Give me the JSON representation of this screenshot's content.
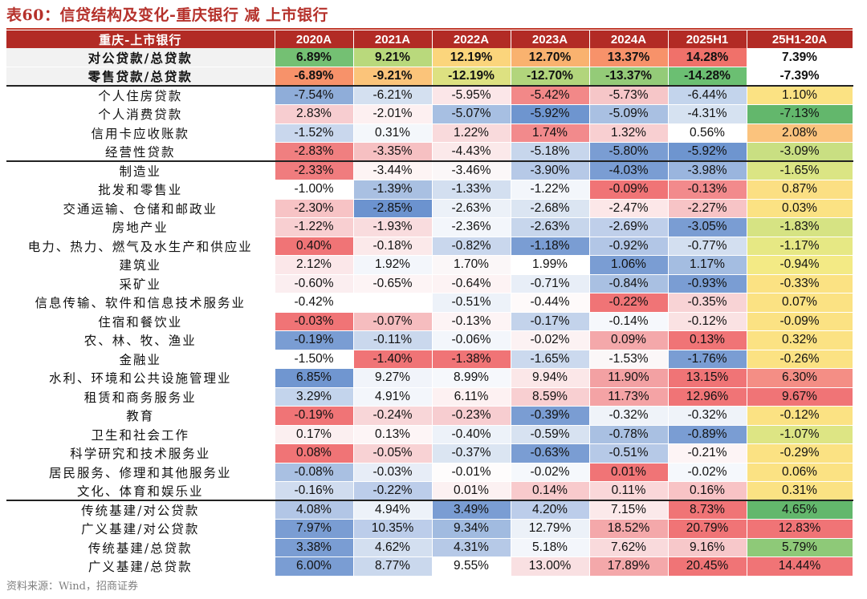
{
  "title": "表60：信贷结构及变化-重庆银行 减 上市银行",
  "source": "资料来源：Wind，招商证券",
  "headers": [
    "重庆-上市银行",
    "2020A",
    "2021A",
    "2022A",
    "2023A",
    "2024A",
    "2025H1",
    "25H1-20A"
  ],
  "rows": [
    {
      "label": "对公贷款/总贷款",
      "kind": "sum",
      "cells": [
        {
          "v": "6.89%",
          "c": "#74c073"
        },
        {
          "v": "9.21%",
          "c": "#b9d97c"
        },
        {
          "v": "12.19%",
          "c": "#fbd57c"
        },
        {
          "v": "12.70%",
          "c": "#f9b26f"
        },
        {
          "v": "13.37%",
          "c": "#f7926a"
        },
        {
          "v": "14.28%",
          "c": "#f0716a"
        },
        {
          "v": "7.39%",
          "c": "#ffffff"
        }
      ]
    },
    {
      "label": "零售贷款/总贷款",
      "kind": "sum",
      "cells": [
        {
          "v": "-6.89%",
          "c": "#f7926a"
        },
        {
          "v": "-9.21%",
          "c": "#fbc47a"
        },
        {
          "v": "-12.19%",
          "c": "#dde181"
        },
        {
          "v": "-12.70%",
          "c": "#b2d57c"
        },
        {
          "v": "-13.37%",
          "c": "#94cb78"
        },
        {
          "v": "-14.28%",
          "c": "#6bbf72"
        },
        {
          "v": "-7.39%",
          "c": "#ffffff"
        }
      ]
    },
    {
      "label": "个人住房贷款",
      "kind": "sep",
      "cells": [
        {
          "v": "-7.54%",
          "c": "#8fadd9"
        },
        {
          "v": "-6.21%",
          "c": "#d4e0f0"
        },
        {
          "v": "-5.95%",
          "c": "#fbe6e8"
        },
        {
          "v": "-5.42%",
          "c": "#f28888"
        },
        {
          "v": "-5.73%",
          "c": "#f6c6c8"
        },
        {
          "v": "-6.44%",
          "c": "#c3d4ec"
        },
        {
          "v": "1.10%",
          "c": "#fbe283"
        }
      ]
    },
    {
      "label": "个人消费贷款",
      "cells": [
        {
          "v": "2.83%",
          "c": "#f7cdd0"
        },
        {
          "v": "-2.01%",
          "c": "#fdf0f1"
        },
        {
          "v": "-5.07%",
          "c": "#a7bfe2"
        },
        {
          "v": "-5.92%",
          "c": "#6e95cf"
        },
        {
          "v": "-5.09%",
          "c": "#a9c0e2"
        },
        {
          "v": "-4.31%",
          "c": "#d6e2f1"
        },
        {
          "v": "-7.13%",
          "c": "#63b76c"
        }
      ]
    },
    {
      "label": "信用卡应收账款",
      "cells": [
        {
          "v": "-1.52%",
          "c": "#c9d7ed"
        },
        {
          "v": "0.31%",
          "c": "#f4f7fb"
        },
        {
          "v": "1.22%",
          "c": "#f9dadc"
        },
        {
          "v": "1.74%",
          "c": "#f28a8c"
        },
        {
          "v": "1.32%",
          "c": "#f8cfd1"
        },
        {
          "v": "0.56%",
          "c": "#ffffff"
        },
        {
          "v": "2.08%",
          "c": "#fbc37d"
        }
      ]
    },
    {
      "label": "经营性贷款",
      "cells": [
        {
          "v": "-2.83%",
          "c": "#f07f80"
        },
        {
          "v": "-3.35%",
          "c": "#f6c0c2"
        },
        {
          "v": "-4.43%",
          "c": "#fbe9ea"
        },
        {
          "v": "-5.18%",
          "c": "#c7d6ec"
        },
        {
          "v": "-5.80%",
          "c": "#7a9dd3"
        },
        {
          "v": "-5.92%",
          "c": "#6e95cf"
        },
        {
          "v": "-3.09%",
          "c": "#c9df82"
        }
      ]
    },
    {
      "label": "制造业",
      "kind": "sep",
      "cells": [
        {
          "v": "-2.33%",
          "c": "#f07c7e"
        },
        {
          "v": "-3.44%",
          "c": "#fdf4f4"
        },
        {
          "v": "-3.46%",
          "c": "#fbf7f8"
        },
        {
          "v": "-3.90%",
          "c": "#b6c9e7"
        },
        {
          "v": "-4.03%",
          "c": "#7a9dd3"
        },
        {
          "v": "-3.98%",
          "c": "#9ab5de"
        },
        {
          "v": "-1.65%",
          "c": "#dbe584"
        }
      ]
    },
    {
      "label": "批发和零售业",
      "cells": [
        {
          "v": "-1.00%",
          "c": "#ffffff"
        },
        {
          "v": "-1.39%",
          "c": "#a9c0e2"
        },
        {
          "v": "-1.33%",
          "c": "#d3dff0"
        },
        {
          "v": "-1.22%",
          "c": "#f3f6fb"
        },
        {
          "v": "-0.09%",
          "c": "#f07476"
        },
        {
          "v": "-0.13%",
          "c": "#f28a8c"
        },
        {
          "v": "0.87%",
          "c": "#fbdf83"
        }
      ]
    },
    {
      "label": "交通运输、仓储和邮政业",
      "cells": [
        {
          "v": "-2.30%",
          "c": "#f7c3c5"
        },
        {
          "v": "-2.85%",
          "c": "#6c93cf"
        },
        {
          "v": "-2.63%",
          "c": "#ecf1f8"
        },
        {
          "v": "-2.68%",
          "c": "#dbe5f2"
        },
        {
          "v": "-2.47%",
          "c": "#fce7e8"
        },
        {
          "v": "-2.27%",
          "c": "#f7c4c6"
        },
        {
          "v": "0.03%",
          "c": "#fbe283"
        }
      ]
    },
    {
      "label": "房地产业",
      "cells": [
        {
          "v": "-1.22%",
          "c": "#f8cfd1"
        },
        {
          "v": "-1.93%",
          "c": "#f9dcde"
        },
        {
          "v": "-2.36%",
          "c": "#f3f6fb"
        },
        {
          "v": "-2.63%",
          "c": "#c7d6ec"
        },
        {
          "v": "-2.69%",
          "c": "#bfcfea"
        },
        {
          "v": "-3.05%",
          "c": "#7a9dd3"
        },
        {
          "v": "-1.83%",
          "c": "#d6e383"
        }
      ]
    },
    {
      "label": "电力、热力、燃气及水生产和供应业",
      "cells": [
        {
          "v": "0.40%",
          "c": "#f07476"
        },
        {
          "v": "-0.18%",
          "c": "#fbe9ea"
        },
        {
          "v": "-0.82%",
          "c": "#c9d7ed"
        },
        {
          "v": "-1.18%",
          "c": "#7a9dd3"
        },
        {
          "v": "-0.92%",
          "c": "#b2c6e6"
        },
        {
          "v": "-0.77%",
          "c": "#d3dff0"
        },
        {
          "v": "-1.17%",
          "c": "#e6e884"
        }
      ]
    },
    {
      "label": "建筑业",
      "cells": [
        {
          "v": "2.12%",
          "c": "#fbe7e9"
        },
        {
          "v": "1.92%",
          "c": "#f3f6fb"
        },
        {
          "v": "1.70%",
          "c": "#fbf7f8"
        },
        {
          "v": "1.99%",
          "c": "#ffffff"
        },
        {
          "v": "1.06%",
          "c": "#7a9dd3"
        },
        {
          "v": "1.17%",
          "c": "#a4bde1"
        },
        {
          "v": "-0.94%",
          "c": "#f3ea85"
        }
      ]
    },
    {
      "label": "采矿业",
      "cells": [
        {
          "v": "-0.60%",
          "c": "#fbeef0"
        },
        {
          "v": "-0.65%",
          "c": "#fdf4f5"
        },
        {
          "v": "-0.64%",
          "c": "#fdf3f4"
        },
        {
          "v": "-0.71%",
          "c": "#e8eef7"
        },
        {
          "v": "-0.84%",
          "c": "#a9c0e2"
        },
        {
          "v": "-0.93%",
          "c": "#7a9dd3"
        },
        {
          "v": "-0.33%",
          "c": "#fbe283"
        }
      ]
    },
    {
      "label": "信息传输、软件和信息技术服务业",
      "cells": [
        {
          "v": "-0.42%",
          "c": "#ffffff"
        },
        {
          "v": "",
          "c": "#ffffff"
        },
        {
          "v": "-0.51%",
          "c": "#edf2f9"
        },
        {
          "v": "-0.44%",
          "c": "#fefafa"
        },
        {
          "v": "-0.22%",
          "c": "#f07476"
        },
        {
          "v": "-0.35%",
          "c": "#f8d3d5"
        },
        {
          "v": "0.07%",
          "c": "#fbe283"
        }
      ]
    },
    {
      "label": "住宿和餐饮业",
      "cells": [
        {
          "v": "-0.03%",
          "c": "#f07476"
        },
        {
          "v": "-0.07%",
          "c": "#f6bdbf"
        },
        {
          "v": "-0.13%",
          "c": "#fdf4f5"
        },
        {
          "v": "-0.17%",
          "c": "#c3d3eb"
        },
        {
          "v": "-0.14%",
          "c": "#f6f8fc"
        },
        {
          "v": "-0.12%",
          "c": "#fae2e3"
        },
        {
          "v": "-0.09%",
          "c": "#fbe283"
        }
      ]
    },
    {
      "label": "农、林、牧、渔业",
      "cells": [
        {
          "v": "-0.19%",
          "c": "#7a9dd3"
        },
        {
          "v": "-0.11%",
          "c": "#cad8ed"
        },
        {
          "v": "-0.06%",
          "c": "#f3f6fb"
        },
        {
          "v": "-0.02%",
          "c": "#fcf2f3"
        },
        {
          "v": "0.09%",
          "c": "#f4a8aa"
        },
        {
          "v": "0.13%",
          "c": "#f07476"
        },
        {
          "v": "0.32%",
          "c": "#fbe283"
        }
      ]
    },
    {
      "label": "金融业",
      "cells": [
        {
          "v": "-1.50%",
          "c": "#ffffff"
        },
        {
          "v": "-1.40%",
          "c": "#f07476"
        },
        {
          "v": "-1.38%",
          "c": "#f07476"
        },
        {
          "v": "-1.65%",
          "c": "#cbd9ee"
        },
        {
          "v": "-1.53%",
          "c": "#fbf7f8"
        },
        {
          "v": "-1.76%",
          "c": "#7a9dd3"
        },
        {
          "v": "-0.26%",
          "c": "#fbe283"
        }
      ]
    },
    {
      "label": "水利、环境和公共设施管理业",
      "cells": [
        {
          "v": "6.85%",
          "c": "#7096d0"
        },
        {
          "v": "9.27%",
          "c": "#f1f4fa"
        },
        {
          "v": "8.99%",
          "c": "#f6f8fc"
        },
        {
          "v": "9.94%",
          "c": "#fbe7e8"
        },
        {
          "v": "11.90%",
          "c": "#f3a1a3"
        },
        {
          "v": "13.15%",
          "c": "#f07476"
        },
        {
          "v": "6.30%",
          "c": "#f48e85"
        }
      ]
    },
    {
      "label": "租赁和商务服务业",
      "cells": [
        {
          "v": "3.29%",
          "c": "#c3d4ec"
        },
        {
          "v": "4.91%",
          "c": "#f3f6fb"
        },
        {
          "v": "6.11%",
          "c": "#fdf1f2"
        },
        {
          "v": "8.59%",
          "c": "#f8cfd1"
        },
        {
          "v": "11.73%",
          "c": "#f4a3a5"
        },
        {
          "v": "12.96%",
          "c": "#f07476"
        },
        {
          "v": "9.67%",
          "c": "#f07476"
        }
      ]
    },
    {
      "label": "教育",
      "cells": [
        {
          "v": "-0.19%",
          "c": "#f07476"
        },
        {
          "v": "-0.24%",
          "c": "#f8d6d8"
        },
        {
          "v": "-0.23%",
          "c": "#f7cdd0"
        },
        {
          "v": "-0.39%",
          "c": "#7a9dd3"
        },
        {
          "v": "-0.32%",
          "c": "#eff3f9"
        },
        {
          "v": "-0.32%",
          "c": "#eff3f9"
        },
        {
          "v": "-0.12%",
          "c": "#fbe283"
        }
      ]
    },
    {
      "label": "卫生和社会工作",
      "cells": [
        {
          "v": "0.17%",
          "c": "#fbeff0"
        },
        {
          "v": "0.13%",
          "c": "#fdf5f6"
        },
        {
          "v": "-0.40%",
          "c": "#edf2f9"
        },
        {
          "v": "-0.59%",
          "c": "#d7e2f1"
        },
        {
          "v": "-0.78%",
          "c": "#a9c0e2"
        },
        {
          "v": "-0.89%",
          "c": "#7a9dd3"
        },
        {
          "v": "-1.07%",
          "c": "#dde584"
        }
      ]
    },
    {
      "label": "科学研究和技术服务业",
      "cells": [
        {
          "v": "0.08%",
          "c": "#f07476"
        },
        {
          "v": "-0.05%",
          "c": "#f8d2d4"
        },
        {
          "v": "-0.37%",
          "c": "#dbe5f2"
        },
        {
          "v": "-0.63%",
          "c": "#7a9dd3"
        },
        {
          "v": "-0.51%",
          "c": "#b6c9e7"
        },
        {
          "v": "-0.21%",
          "c": "#fdf4f5"
        },
        {
          "v": "-0.29%",
          "c": "#fbe283"
        }
      ]
    },
    {
      "label": "居民服务、修理和其他服务业",
      "cells": [
        {
          "v": "-0.08%",
          "c": "#a9c0e2"
        },
        {
          "v": "-0.03%",
          "c": "#e7edf7"
        },
        {
          "v": "-0.01%",
          "c": "#fefcfc"
        },
        {
          "v": "-0.02%",
          "c": "#f5f8fc"
        },
        {
          "v": "0.01%",
          "c": "#f07476"
        },
        {
          "v": "-0.02%",
          "c": "#f5f8fc"
        },
        {
          "v": "0.06%",
          "c": "#fbe283"
        }
      ]
    },
    {
      "label": "文化、体育和娱乐业",
      "cells": [
        {
          "v": "-0.16%",
          "c": "#d0dcef"
        },
        {
          "v": "-0.22%",
          "c": "#bccdea"
        },
        {
          "v": "0.01%",
          "c": "#fcf1f2"
        },
        {
          "v": "0.14%",
          "c": "#f8cacc"
        },
        {
          "v": "0.11%",
          "c": "#fad7d9"
        },
        {
          "v": "0.16%",
          "c": "#f8c3c5"
        },
        {
          "v": "0.31%",
          "c": "#fbe283"
        }
      ]
    },
    {
      "label": "传统基建/对公贷款",
      "kind": "sep",
      "cells": [
        {
          "v": "4.08%",
          "c": "#b2c6e6"
        },
        {
          "v": "4.94%",
          "c": "#edf2f9"
        },
        {
          "v": "3.49%",
          "c": "#7a9dd3"
        },
        {
          "v": "4.20%",
          "c": "#bccdea"
        },
        {
          "v": "7.15%",
          "c": "#fbe9ea"
        },
        {
          "v": "8.73%",
          "c": "#f07476"
        },
        {
          "v": "4.65%",
          "c": "#63b76c"
        }
      ]
    },
    {
      "label": "广义基建/对公贷款",
      "cells": [
        {
          "v": "7.97%",
          "c": "#7a9dd3"
        },
        {
          "v": "10.35%",
          "c": "#bccdea"
        },
        {
          "v": "9.34%",
          "c": "#a1bbe0"
        },
        {
          "v": "12.79%",
          "c": "#ecf1f8"
        },
        {
          "v": "18.52%",
          "c": "#f4a8aa"
        },
        {
          "v": "20.79%",
          "c": "#f07476"
        },
        {
          "v": "12.83%",
          "c": "#f07476"
        }
      ]
    },
    {
      "label": "传统基建/总贷款",
      "cells": [
        {
          "v": "3.38%",
          "c": "#7a9dd3"
        },
        {
          "v": "4.62%",
          "c": "#d3dff0"
        },
        {
          "v": "4.31%",
          "c": "#b6c9e7"
        },
        {
          "v": "5.18%",
          "c": "#f3f6fb"
        },
        {
          "v": "7.62%",
          "c": "#f9dadc"
        },
        {
          "v": "9.16%",
          "c": "#f7c8ca"
        },
        {
          "v": "5.79%",
          "c": "#8ec978"
        }
      ]
    },
    {
      "label": "广义基建/总贷款",
      "cells": [
        {
          "v": "6.00%",
          "c": "#7a9dd3"
        },
        {
          "v": "8.77%",
          "c": "#cad8ed"
        },
        {
          "v": "9.55%",
          "c": "#ffffff"
        },
        {
          "v": "13.00%",
          "c": "#f9e0e2"
        },
        {
          "v": "17.89%",
          "c": "#f4a8aa"
        },
        {
          "v": "20.45%",
          "c": "#f07476"
        },
        {
          "v": "14.44%",
          "c": "#f07476"
        }
      ]
    }
  ]
}
